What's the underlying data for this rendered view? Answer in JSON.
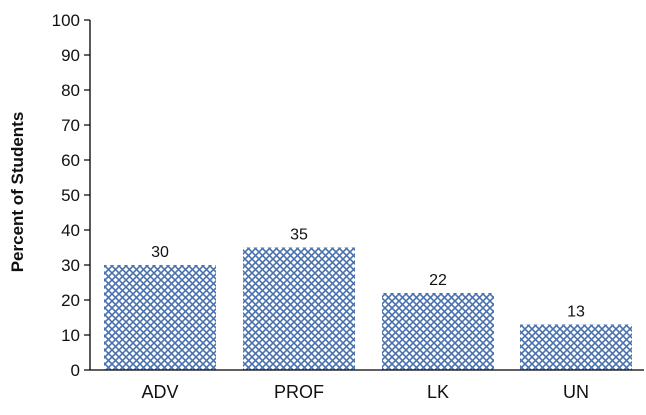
{
  "chart_data": {
    "type": "bar",
    "title": "",
    "xlabel": "",
    "ylabel": "Percent of Students",
    "categories": [
      "ADV",
      "PROF",
      "LK",
      "UN"
    ],
    "values": [
      30,
      35,
      22,
      13
    ],
    "data_labels": [
      "30",
      "35",
      "22",
      "13"
    ],
    "ylim": [
      0,
      100
    ],
    "yticks": [
      0,
      10,
      20,
      30,
      40,
      50,
      60,
      70,
      80,
      90,
      100
    ],
    "grid": false,
    "legend": "none",
    "bar_fill": "crosshatch",
    "colors": {
      "hatch": "#4a72b0",
      "bar_background": "#ffffff",
      "axis": "#000000"
    }
  }
}
